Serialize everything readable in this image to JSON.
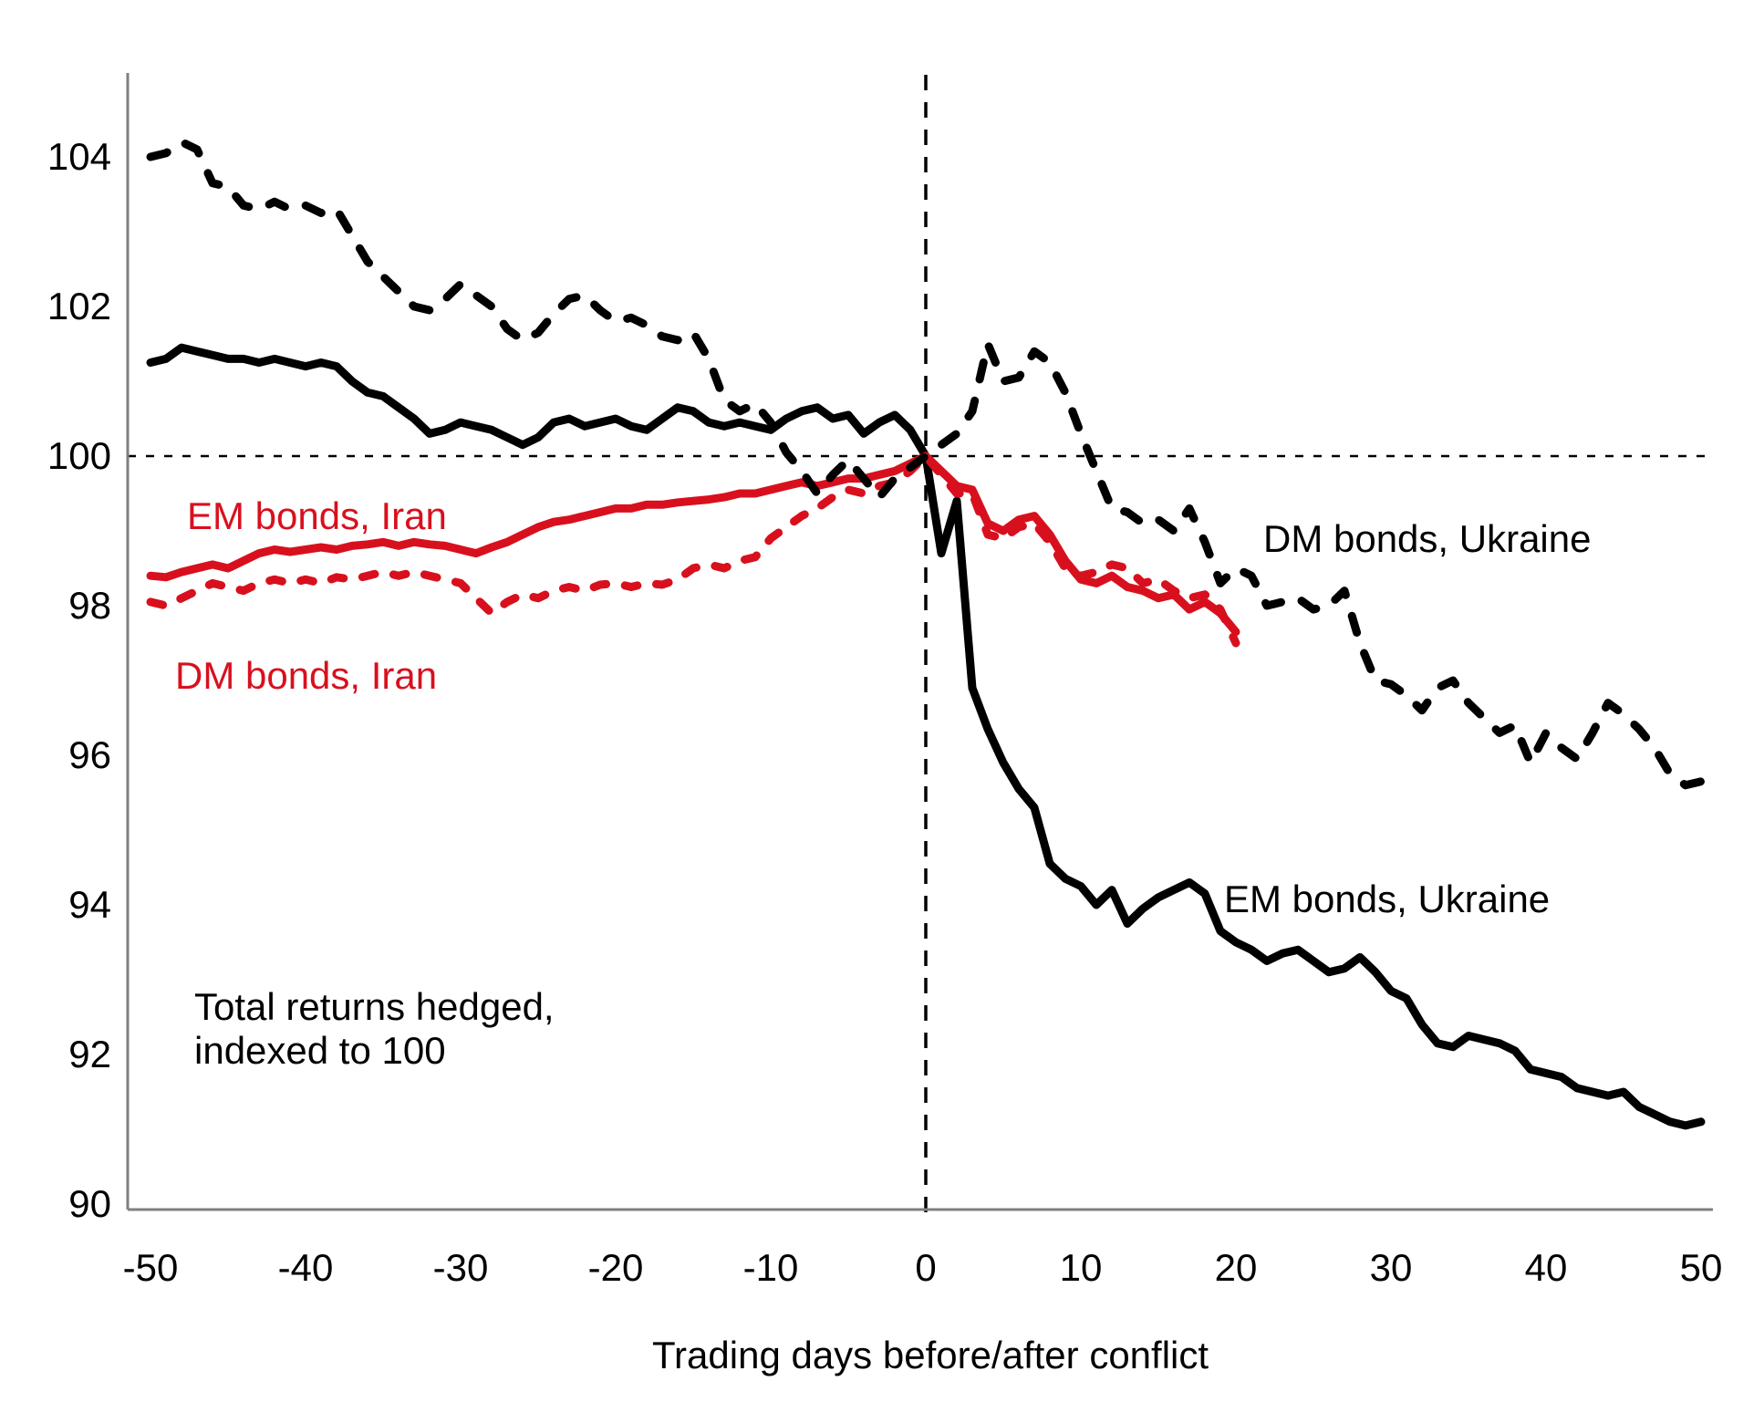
{
  "chart_data": {
    "type": "line",
    "title": "",
    "xlabel": "Trading days before/after conflict",
    "ylabel": "Total returns hedged, indexed to 100",
    "x_range": [
      -50,
      50
    ],
    "y_range": [
      90,
      105
    ],
    "x_ticks": [
      -50,
      -40,
      -30,
      -20,
      -10,
      0,
      10,
      20,
      30,
      40,
      50
    ],
    "y_ticks": [
      90,
      92,
      94,
      96,
      98,
      100,
      102,
      104
    ],
    "grid": "off",
    "legend_position": "inline-labels",
    "reference_lines": {
      "horizontal_at_y": 100,
      "vertical_at_x": 0
    },
    "annotation": {
      "line1": "Total returns hedged,",
      "line2": "indexed to 100"
    },
    "colors": {
      "black": "#000000",
      "red": "#d8101e",
      "axis_gray": "#7f7f7f"
    },
    "series": [
      {
        "name": "DM bonds, Ukraine",
        "color": "#000000",
        "style": "dashed",
        "x_start": -50,
        "values": [
          104.0,
          104.05,
          104.2,
          104.1,
          103.65,
          103.6,
          103.35,
          103.3,
          103.4,
          103.3,
          103.35,
          103.25,
          103.3,
          102.95,
          102.6,
          102.4,
          102.2,
          102.0,
          101.95,
          102.1,
          102.3,
          102.15,
          102.0,
          101.7,
          101.55,
          101.65,
          101.9,
          102.1,
          102.15,
          101.95,
          101.8,
          101.85,
          101.75,
          101.6,
          101.55,
          101.65,
          101.3,
          100.75,
          100.6,
          100.7,
          100.45,
          100.05,
          99.8,
          99.5,
          99.75,
          99.95,
          99.7,
          99.45,
          99.7,
          99.85,
          100.0,
          100.15,
          100.3,
          100.6,
          101.5,
          101.0,
          101.05,
          101.4,
          101.25,
          100.85,
          100.3,
          99.8,
          99.3,
          99.25,
          99.1,
          99.15,
          99.0,
          99.3,
          98.85,
          98.3,
          98.5,
          98.4,
          98.0,
          98.05,
          98.1,
          97.95,
          98.0,
          98.2,
          97.5,
          97.0,
          96.95,
          96.8,
          96.6,
          96.9,
          97.0,
          96.7,
          96.5,
          96.3,
          96.4,
          95.9,
          96.3,
          96.1,
          95.95,
          96.3,
          96.7,
          96.55,
          96.35,
          96.1,
          95.75,
          95.6,
          95.65
        ]
      },
      {
        "name": "EM bonds, Ukraine",
        "color": "#000000",
        "style": "solid",
        "x_start": -50,
        "values": [
          101.25,
          101.3,
          101.45,
          101.4,
          101.35,
          101.3,
          101.3,
          101.25,
          101.3,
          101.25,
          101.2,
          101.25,
          101.2,
          101.0,
          100.85,
          100.8,
          100.65,
          100.5,
          100.3,
          100.35,
          100.45,
          100.4,
          100.35,
          100.25,
          100.15,
          100.25,
          100.45,
          100.5,
          100.4,
          100.45,
          100.5,
          100.4,
          100.35,
          100.5,
          100.65,
          100.6,
          100.45,
          100.4,
          100.45,
          100.4,
          100.35,
          100.5,
          100.6,
          100.65,
          100.5,
          100.55,
          100.3,
          100.45,
          100.55,
          100.35,
          100.0,
          98.7,
          99.4,
          96.9,
          96.35,
          95.9,
          95.55,
          95.3,
          94.55,
          94.35,
          94.25,
          94.0,
          94.2,
          93.75,
          93.95,
          94.1,
          94.2,
          94.3,
          94.15,
          93.65,
          93.5,
          93.4,
          93.25,
          93.35,
          93.4,
          93.25,
          93.1,
          93.15,
          93.3,
          93.1,
          92.85,
          92.75,
          92.4,
          92.15,
          92.1,
          92.25,
          92.2,
          92.15,
          92.05,
          91.8,
          91.75,
          91.7,
          91.55,
          91.5,
          91.45,
          91.5,
          91.3,
          91.2,
          91.1,
          91.05,
          91.1
        ]
      },
      {
        "name": "EM bonds, Iran",
        "color": "#d8101e",
        "style": "solid",
        "x_start": -50,
        "values": [
          98.4,
          98.38,
          98.45,
          98.5,
          98.55,
          98.5,
          98.6,
          98.7,
          98.75,
          98.72,
          98.75,
          98.78,
          98.75,
          98.8,
          98.82,
          98.85,
          98.8,
          98.85,
          98.82,
          98.8,
          98.75,
          98.7,
          98.78,
          98.85,
          98.95,
          99.05,
          99.12,
          99.15,
          99.2,
          99.25,
          99.3,
          99.3,
          99.35,
          99.35,
          99.38,
          99.4,
          99.42,
          99.45,
          99.5,
          99.5,
          99.55,
          99.6,
          99.65,
          99.6,
          99.65,
          99.7,
          99.7,
          99.75,
          99.8,
          99.9,
          100.0,
          99.8,
          99.6,
          99.55,
          99.1,
          99.0,
          99.15,
          99.2,
          98.95,
          98.6,
          98.35,
          98.3,
          98.4,
          98.25,
          98.2,
          98.1,
          98.15,
          97.95,
          98.05,
          97.9,
          97.65
        ]
      },
      {
        "name": "DM bonds, Iran",
        "color": "#d8101e",
        "style": "dashed",
        "x_start": -50,
        "values": [
          98.05,
          98.0,
          98.1,
          98.2,
          98.3,
          98.25,
          98.2,
          98.3,
          98.35,
          98.3,
          98.35,
          98.3,
          98.38,
          98.35,
          98.4,
          98.45,
          98.4,
          98.45,
          98.4,
          98.35,
          98.3,
          98.1,
          97.9,
          98.05,
          98.15,
          98.1,
          98.2,
          98.25,
          98.2,
          98.28,
          98.3,
          98.25,
          98.3,
          98.28,
          98.35,
          98.5,
          98.55,
          98.5,
          98.6,
          98.65,
          98.9,
          99.05,
          99.2,
          99.3,
          99.45,
          99.55,
          99.5,
          99.6,
          99.65,
          99.8,
          100.0,
          99.75,
          99.5,
          99.5,
          98.95,
          98.9,
          99.05,
          99.1,
          98.85,
          98.5,
          98.4,
          98.45,
          98.55,
          98.5,
          98.3,
          98.35,
          98.2,
          98.1,
          98.15,
          97.95,
          97.5
        ]
      }
    ]
  }
}
